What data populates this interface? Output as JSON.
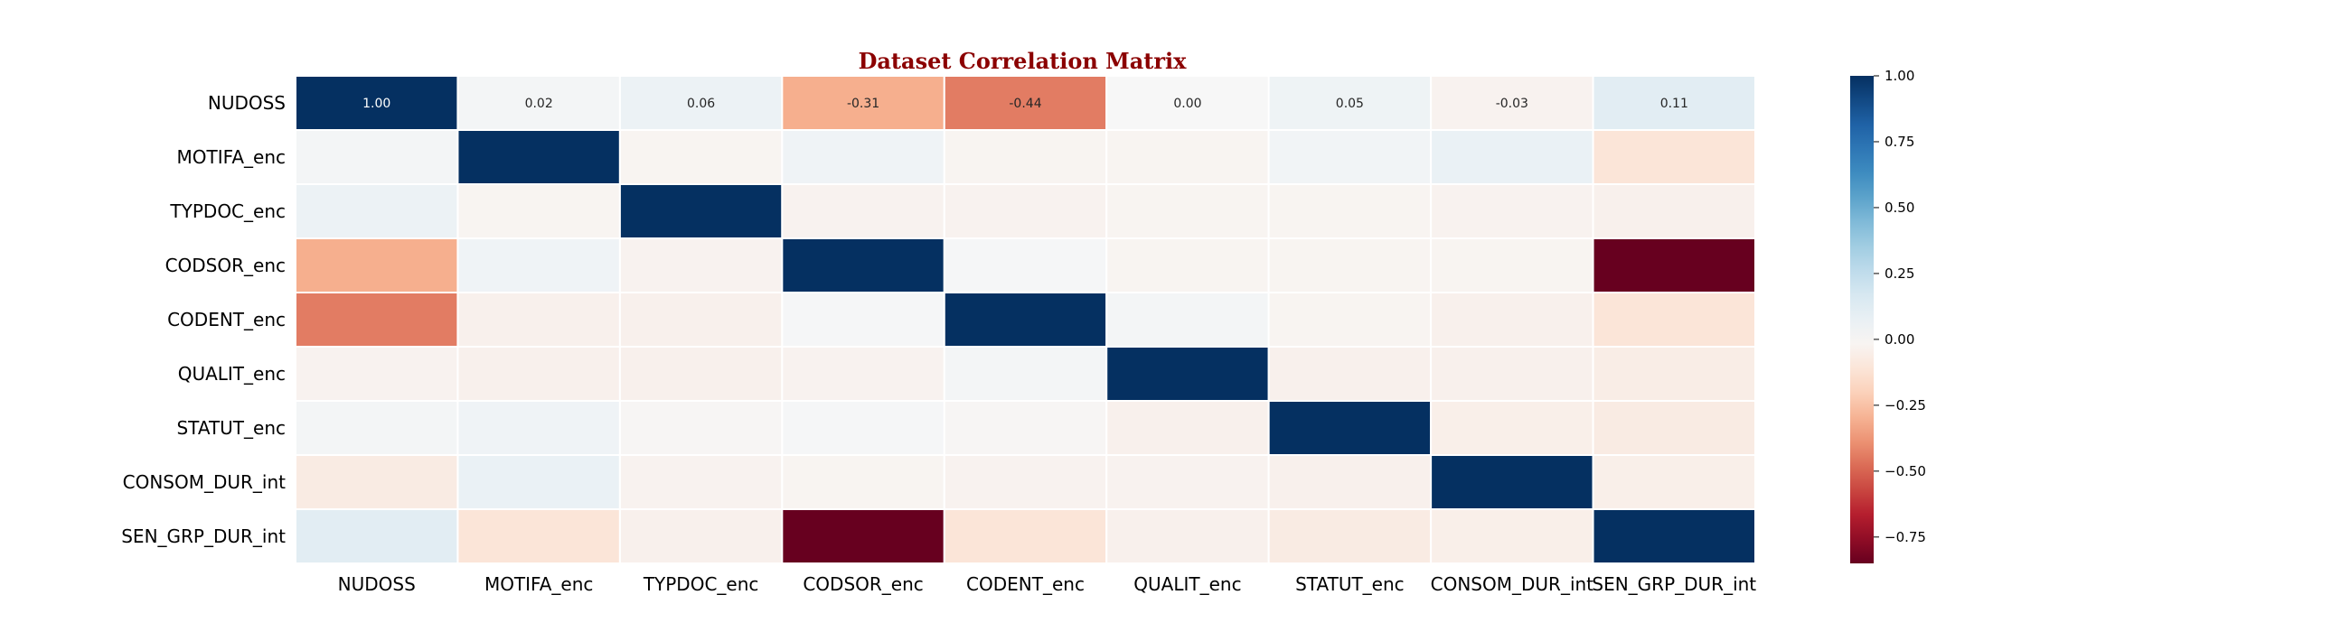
{
  "chart_data": {
    "type": "heatmap",
    "title": "Dataset Correlation Matrix",
    "title_color": "#8B0000",
    "variables": [
      "NUDOSS",
      "MOTIFA_enc",
      "TYPDOC_enc",
      "CODSOR_enc",
      "CODENT_enc",
      "QUALIT_enc",
      "STATUT_enc",
      "CONSOM_DUR_int",
      "SEN_GRP_DUR_int"
    ],
    "matrix": [
      [
        1.0,
        0.02,
        0.06,
        -0.31,
        -0.44,
        0.0,
        0.05,
        -0.03,
        0.11
      ],
      [
        0.02,
        1.0,
        -0.02,
        0.04,
        -0.02,
        -0.02,
        0.03,
        0.07,
        -0.11
      ],
      [
        0.06,
        -0.02,
        1.0,
        -0.03,
        -0.03,
        -0.02,
        -0.02,
        -0.03,
        -0.04
      ],
      [
        -0.31,
        0.04,
        -0.03,
        1.0,
        0.01,
        -0.02,
        -0.02,
        -0.02,
        -0.85
      ],
      [
        -0.44,
        -0.04,
        -0.04,
        0.01,
        1.0,
        0.02,
        -0.02,
        -0.04,
        -0.11
      ],
      [
        -0.03,
        -0.04,
        -0.04,
        -0.03,
        0.02,
        1.0,
        -0.04,
        -0.04,
        -0.06
      ],
      [
        0.02,
        0.04,
        -0.01,
        0.01,
        -0.01,
        -0.04,
        1.0,
        -0.05,
        -0.07
      ],
      [
        -0.07,
        0.07,
        -0.03,
        -0.02,
        -0.03,
        -0.03,
        -0.04,
        1.0,
        -0.05
      ],
      [
        0.11,
        -0.11,
        -0.04,
        -0.85,
        -0.11,
        -0.04,
        -0.07,
        -0.05,
        1.0
      ]
    ],
    "annotated_rows": [
      0
    ],
    "colorbar": {
      "min": -0.85,
      "max": 1.0,
      "ticks": [
        1.0,
        0.75,
        0.5,
        0.25,
        0.0,
        -0.25,
        -0.5,
        -0.75
      ],
      "tick_labels": [
        "1.00",
        "0.75",
        "0.50",
        "0.25",
        "0.00",
        "−0.25",
        "−0.50",
        "−0.75"
      ],
      "colormap": "RdBu"
    }
  }
}
